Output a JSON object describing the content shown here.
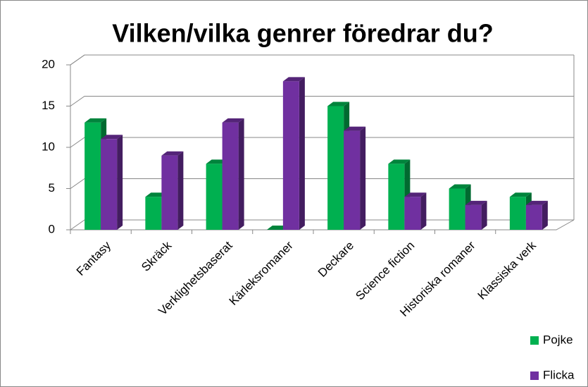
{
  "chart_data": {
    "type": "bar3d",
    "title": "Vilken/vilka genrer föredrar du?",
    "categories": [
      "Fantasy",
      "Skräck",
      "Verklighetsbaserat",
      "Kärleksromaner",
      "Deckare",
      "Science fiction",
      "Historiska romaner",
      "Klassiska verk"
    ],
    "series": [
      {
        "name": "Pojke",
        "color": "#00b050",
        "values": [
          13,
          4,
          8,
          0,
          15,
          8,
          5,
          4
        ]
      },
      {
        "name": "Flicka",
        "color": "#7030a0",
        "values": [
          11,
          9,
          13,
          18,
          12,
          4,
          3,
          3
        ]
      }
    ],
    "ylim": [
      0,
      20
    ],
    "yticks": [
      0,
      5,
      10,
      15,
      20
    ],
    "grid": true,
    "legend": "bottom-right"
  }
}
